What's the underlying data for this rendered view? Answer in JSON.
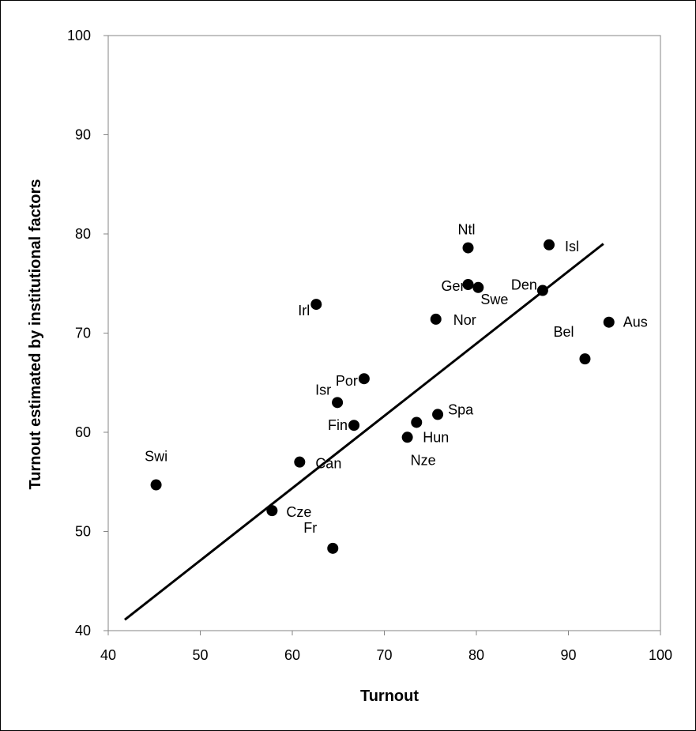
{
  "chart_data": {
    "type": "scatter",
    "xlabel": "Turnout",
    "ylabel": "Turnout estimated by institutional factors",
    "xlim": [
      40,
      100
    ],
    "ylim": [
      40,
      100
    ],
    "xticks": [
      "40",
      "50",
      "60",
      "70",
      "80",
      "90",
      "100"
    ],
    "yticks": [
      "40",
      "50",
      "60",
      "70",
      "80",
      "90",
      "100"
    ],
    "grid": false,
    "legend": "none",
    "colors": {
      "points": "#000000",
      "trendline": "#000000",
      "frame": "#000000"
    },
    "points": [
      {
        "label": "Swi",
        "x": 45.2,
        "y": 54.7
      },
      {
        "label": "Cze",
        "x": 57.8,
        "y": 52.1
      },
      {
        "label": "Can",
        "x": 60.8,
        "y": 57.0
      },
      {
        "label": "Irl",
        "x": 62.6,
        "y": 72.9
      },
      {
        "label": "Fr",
        "x": 64.4,
        "y": 48.3
      },
      {
        "label": "Isr",
        "x": 64.9,
        "y": 63.0
      },
      {
        "label": "Fin",
        "x": 66.7,
        "y": 60.7
      },
      {
        "label": "Por",
        "x": 67.8,
        "y": 65.4
      },
      {
        "label": "Nze",
        "x": 72.5,
        "y": 59.5
      },
      {
        "label": "Hun",
        "x": 73.5,
        "y": 61.0
      },
      {
        "label": "Nor",
        "x": 75.6,
        "y": 71.4
      },
      {
        "label": "Spa",
        "x": 75.8,
        "y": 61.8
      },
      {
        "label": "Ntl",
        "x": 79.1,
        "y": 78.6
      },
      {
        "label": "Ger",
        "x": 79.1,
        "y": 74.9
      },
      {
        "label": "Swe",
        "x": 80.2,
        "y": 74.6
      },
      {
        "label": "Den",
        "x": 87.2,
        "y": 74.3
      },
      {
        "label": "Isl",
        "x": 87.9,
        "y": 78.9
      },
      {
        "label": "Bel",
        "x": 91.8,
        "y": 67.4
      },
      {
        "label": "Aus",
        "x": 94.4,
        "y": 71.1
      }
    ],
    "trendline": {
      "x1": 41.8,
      "y1": 41.1,
      "x2": 93.8,
      "y2": 79.0
    }
  }
}
